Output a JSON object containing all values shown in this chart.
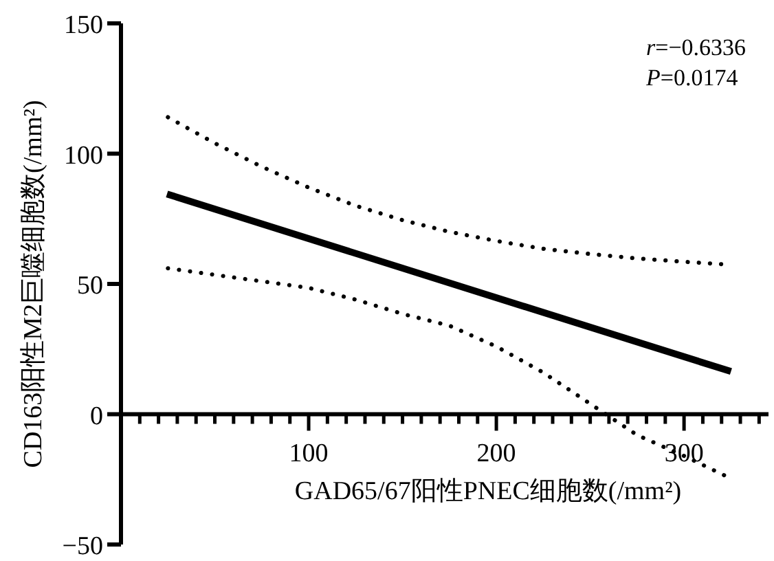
{
  "chart_data": {
    "type": "line",
    "xlabel": "GAD65/67阳性PNEC细胞数(/mm²)",
    "ylabel": "CD163阳性M2巨噬细胞数(/mm²)",
    "xlim": [
      0,
      345
    ],
    "ylim": [
      -50,
      150
    ],
    "xticks": [
      {
        "value": 10,
        "label": null
      },
      {
        "value": 20,
        "label": null
      },
      {
        "value": 30,
        "label": null
      },
      {
        "value": 40,
        "label": null
      },
      {
        "value": 50,
        "label": null
      },
      {
        "value": 60,
        "label": null
      },
      {
        "value": 70,
        "label": null
      },
      {
        "value": 80,
        "label": null
      },
      {
        "value": 90,
        "label": null
      },
      100,
      {
        "value": 110,
        "label": null
      },
      {
        "value": 120,
        "label": null
      },
      {
        "value": 130,
        "label": null
      },
      {
        "value": 140,
        "label": null
      },
      {
        "value": 150,
        "label": null
      },
      {
        "value": 160,
        "label": null
      },
      {
        "value": 170,
        "label": null
      },
      {
        "value": 180,
        "label": null
      },
      {
        "value": 190,
        "label": null
      },
      200,
      {
        "value": 210,
        "label": null
      },
      {
        "value": 220,
        "label": null
      },
      {
        "value": 230,
        "label": null
      },
      {
        "value": 240,
        "label": null
      },
      {
        "value": 250,
        "label": null
      },
      {
        "value": 260,
        "label": null
      },
      {
        "value": 270,
        "label": null
      },
      {
        "value": 280,
        "label": null
      },
      {
        "value": 290,
        "label": null
      },
      300,
      {
        "value": 310,
        "label": null
      },
      {
        "value": 320,
        "label": null
      },
      {
        "value": 330,
        "label": null
      },
      {
        "value": 340,
        "label": null
      }
    ],
    "yticks": [
      -50,
      0,
      50,
      100,
      150
    ],
    "annotations": [
      "r=−0.6336",
      "P=0.0174"
    ],
    "series": [
      {
        "color": "#000000",
        "line_style": "solid",
        "x": [
          24.5,
          325
        ],
        "values": [
          84.5,
          16.4
        ]
      },
      {
        "color": "#000000",
        "line_style": "dotted",
        "x": [
          25,
          50,
          75,
          100,
          125,
          150,
          175,
          200,
          225,
          250,
          275,
          300,
          320
        ],
        "values": [
          114,
          104,
          95,
          87,
          80,
          74.5,
          70,
          66.5,
          63.5,
          61.5,
          59.8,
          58.5,
          57.6
        ]
      },
      {
        "color": "#000000",
        "line_style": "dotted",
        "x": [
          25,
          50,
          75,
          100,
          125,
          150,
          175,
          200,
          225,
          250,
          275,
          300,
          323
        ],
        "values": [
          56,
          53.5,
          51,
          48.5,
          44,
          38.5,
          34,
          26,
          16,
          4,
          -8,
          -16,
          -24
        ]
      }
    ]
  }
}
